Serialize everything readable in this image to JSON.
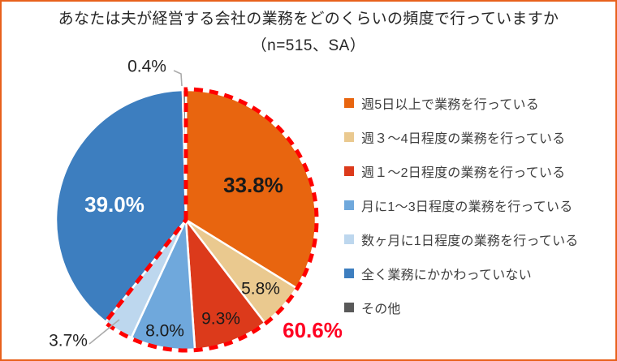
{
  "frame": {
    "background": "#FFFFFF",
    "border_color": "#E8611C"
  },
  "header": {
    "title": "あなたは夫が経営する会社の業務をどのくらいの頻度で行っていますか",
    "subtitle": "（n=515、SA）"
  },
  "chart_data": {
    "type": "pie",
    "title": "あなたは夫が経営する会社の業務をどのくらいの頻度で行っていますか",
    "sample_note": "（n=515、SA）",
    "start_angle_deg": 0,
    "direction": "clockwise",
    "legend_position": "right",
    "slices": [
      {
        "label": "週5日以上で業務を行っている",
        "value": 33.8,
        "color": "#E8650F"
      },
      {
        "label": "週３～4日程度の業務を行っている",
        "value": 5.8,
        "color": "#EAC98F"
      },
      {
        "label": "週１～2日程度の業務を行っている",
        "value": 9.3,
        "color": "#DC3A1B"
      },
      {
        "label": "月に1～3日程度の業務を行っている",
        "value": 8.0,
        "color": "#6FA8DC"
      },
      {
        "label": "数ヶ月に1日程度の業務を行っている",
        "value": 3.7,
        "color": "#BDD7EE"
      },
      {
        "label": "全く業務にかかわっていない",
        "value": 39.0,
        "color": "#3D7EBF"
      },
      {
        "label": "その他",
        "value": 0.4,
        "color": "#595959"
      }
    ],
    "highlight": {
      "total_label": "60.6%",
      "total_value": 60.6,
      "slice_indexes": [
        0,
        1,
        2,
        3,
        4
      ],
      "text_color": "#FF0022",
      "outline_color": "#FF0000"
    },
    "value_label_colors": {
      "inside_dark": "#1A1A1A",
      "inside_light": "#FFFFFF",
      "outside": "#262626"
    }
  }
}
